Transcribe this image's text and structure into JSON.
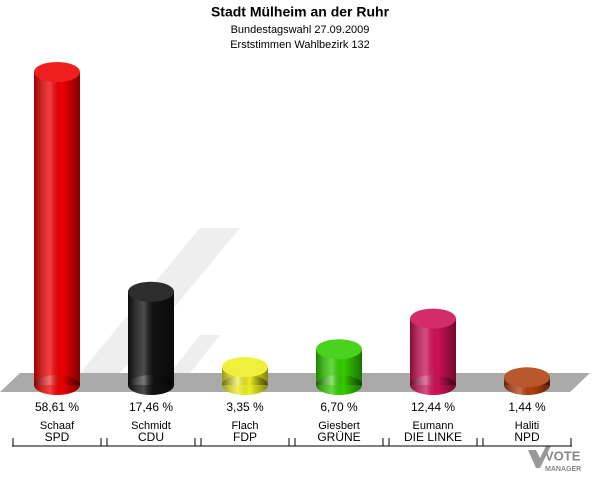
{
  "chart_data": {
    "type": "bar",
    "title": "Stadt Mülheim an der Ruhr",
    "subtitle": "Bundestagswahl 27.09.2009",
    "subtitle2": "Erststimmen Wahlbezirk 132",
    "categories": [
      "SPD",
      "CDU",
      "FDP",
      "GRÜNE",
      "DIE LINKE",
      "NPD"
    ],
    "candidates": [
      "Schaaf",
      "Schmidt",
      "Flach",
      "Giesbert",
      "Eumann",
      "Haliti"
    ],
    "values": [
      58.61,
      17.46,
      3.35,
      6.7,
      12.44,
      1.44
    ],
    "value_labels": [
      "58,61 %",
      "17,46 %",
      "3,35 %",
      "6,70 %",
      "12,44 %",
      "1,44 %"
    ],
    "colors": [
      "#ee0000",
      "#111111",
      "#eeee22",
      "#33cc00",
      "#cc1155",
      "#b04010"
    ]
  },
  "branding": {
    "line1": "VOTE",
    "line2": "MANAGER"
  }
}
